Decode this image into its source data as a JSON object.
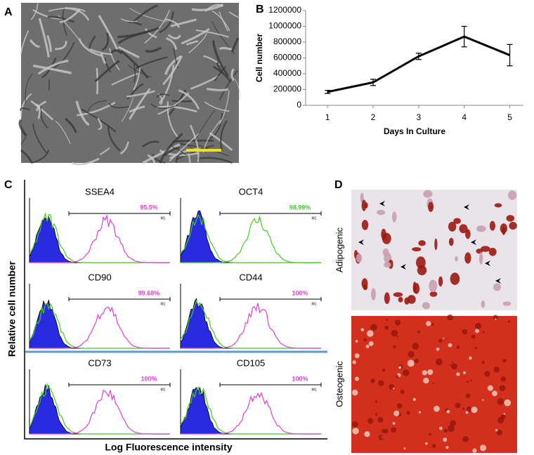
{
  "panels": {
    "a": "A",
    "b": "B",
    "c": "C",
    "d": "D"
  },
  "chart_data": {
    "type": "line",
    "ylabel": "Cell number",
    "xlabel": "Days In Culture",
    "x": [
      1,
      2,
      3,
      4,
      5
    ],
    "values": [
      170000,
      290000,
      620000,
      870000,
      635000
    ],
    "errors": [
      20000,
      40000,
      40000,
      130000,
      135000
    ],
    "color": "#000000",
    "xlim": [
      0.52,
      5.3
    ],
    "xticks": [
      1,
      2,
      3,
      4,
      5
    ],
    "ylim": [
      0,
      1200000
    ],
    "yticks": [
      0,
      200000,
      400000,
      600000,
      800000,
      1000000,
      1200000
    ]
  },
  "flow": {
    "ylabel": "Relative cell number",
    "xlabel": "Log Fluorescence intensity",
    "plots": [
      {
        "marker": "SSEA4",
        "percent": "95.5%",
        "gate": "M1",
        "color": "#e040d8"
      },
      {
        "marker": "OCT4",
        "percent": "98.99%",
        "gate": "M1",
        "color": "#44cc22"
      },
      {
        "marker": "CD90",
        "percent": "99.68%",
        "gate": "M1",
        "color": "#e040d8"
      },
      {
        "marker": "CD44",
        "percent": "100%",
        "gate": "M1",
        "color": "#e040d8"
      },
      {
        "marker": "CD73",
        "percent": "100%",
        "gate": "M1",
        "color": "#e040d8"
      },
      {
        "marker": "CD105",
        "percent": "100%",
        "gate": "M1",
        "color": "#e040d8"
      }
    ]
  },
  "stain": {
    "rows": [
      "Adipogenic",
      "Osteogenic"
    ]
  }
}
